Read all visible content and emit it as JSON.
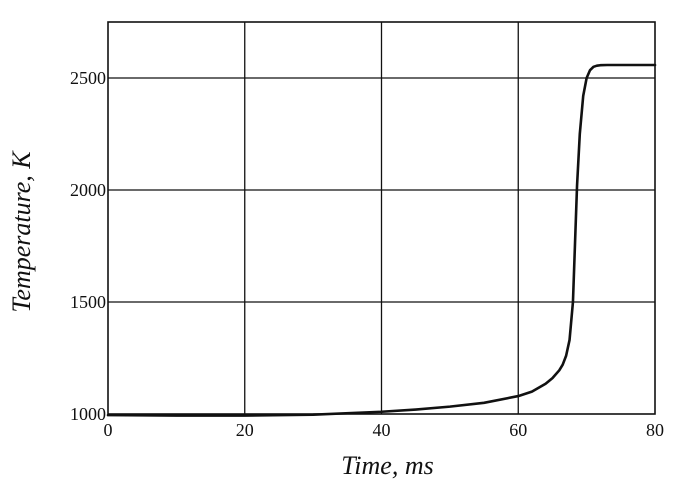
{
  "chart_data": {
    "type": "line",
    "title": "",
    "xlabel": "Time, ms",
    "ylabel": "Temperature, K",
    "xlim": [
      0,
      80
    ],
    "ylim": [
      1000,
      2750
    ],
    "x_ticks": [
      0,
      20,
      40,
      60,
      80
    ],
    "y_ticks": [
      1000,
      1500,
      2000,
      2500
    ],
    "x_tick_labels": [
      "0",
      "20",
      "40",
      "60",
      "80"
    ],
    "y_tick_labels": [
      "1000",
      "1500",
      "2000",
      "2500"
    ],
    "grid": true,
    "legend": "none",
    "series": [
      {
        "color": "#111111",
        "x": [
          0,
          10,
          20,
          30,
          40,
          45,
          50,
          55,
          60,
          62,
          64,
          65,
          66,
          66.5,
          67,
          67.5,
          68,
          68.3,
          68.6,
          69,
          69.5,
          70,
          70.5,
          71,
          71.5,
          72,
          73,
          75,
          80
        ],
        "y": [
          995,
          993,
          993,
          997,
          1010,
          1020,
          1033,
          1050,
          1080,
          1100,
          1135,
          1160,
          1195,
          1220,
          1260,
          1330,
          1500,
          1760,
          2020,
          2250,
          2420,
          2500,
          2535,
          2550,
          2555,
          2557,
          2558,
          2558,
          2558
        ]
      }
    ]
  }
}
